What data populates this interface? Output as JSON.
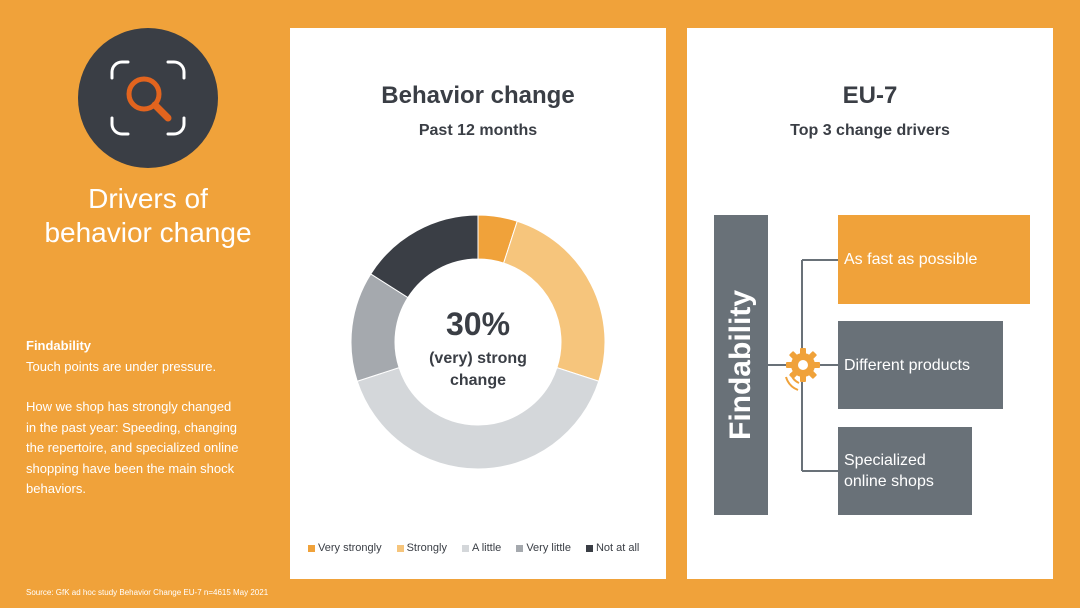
{
  "left": {
    "title_line1": "Drivers of",
    "title_line2": "behavior change",
    "section_heading": "Findability",
    "section_line1": "Touch points are under pressure.",
    "para_line1": "How we shop has strongly changed",
    "para_line2": "in the past year: Speeding, changing",
    "para_line3": "the repertoire, and specialized online",
    "para_line4": "shopping have been the main shock",
    "para_line5": "behaviors.",
    "icon": "magnifier-icon",
    "source": "Source: GfK ad hoc study Behavior Change EU-7 n=4615 May 2021"
  },
  "middle": {
    "title": "Behavior change",
    "subtitle": "Past 12 months",
    "center_value": "30%",
    "center_label_line1": "(very) strong",
    "center_label_line2": "change"
  },
  "chart_data": {
    "type": "pie",
    "title": "Behavior change",
    "subtitle": "Past 12 months",
    "categories": [
      "Very strongly",
      "Strongly",
      "A little",
      "Very little",
      "Not at all"
    ],
    "values": [
      5,
      25,
      40,
      14,
      16
    ],
    "colors": [
      "#f0a23a",
      "#f6c57c",
      "#d4d7da",
      "#a5a9ae",
      "#3a3e45"
    ],
    "center_text": "30% (very) strong change",
    "legend_position": "bottom"
  },
  "right": {
    "title": "EU-7",
    "subtitle": "Top 3 change drivers",
    "category_label": "Findability",
    "drivers": [
      {
        "line1": "As fast as possible",
        "line2": ""
      },
      {
        "line1": "Different products",
        "line2": ""
      },
      {
        "line1": "Specialized",
        "line2": "online shops"
      }
    ],
    "gear_icon": "gear-icon"
  },
  "colors": {
    "background": "#f0a23a",
    "dark": "#3a3e45",
    "slate": "#697178",
    "accent": "#e2641e"
  }
}
